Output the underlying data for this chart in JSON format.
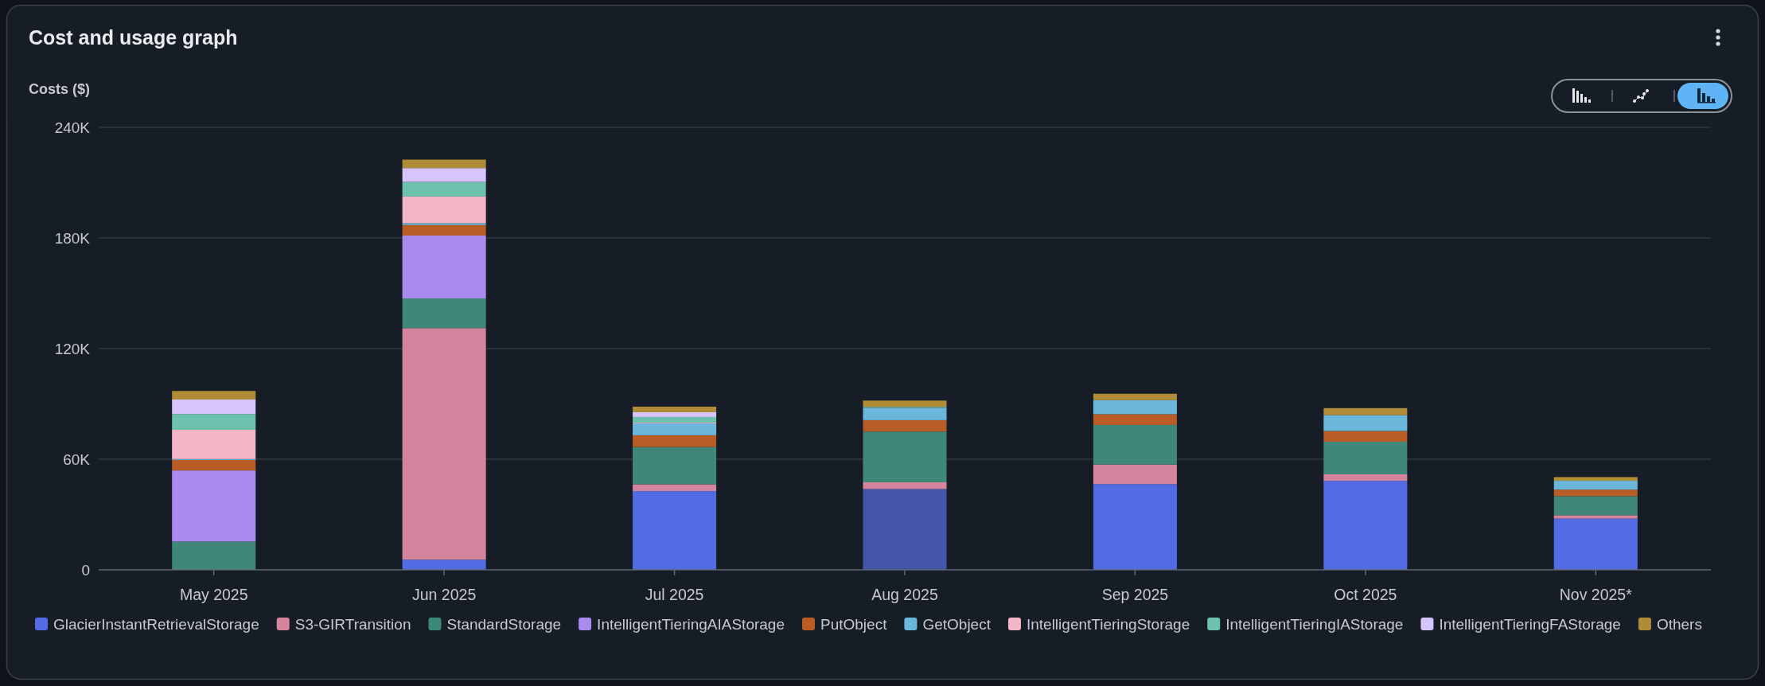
{
  "chart_data": {
    "type": "bar",
    "title": "Cost and usage graph",
    "ylabel": "Costs ($)",
    "categories": [
      "May 2025",
      "Jun 2025",
      "Jul 2025",
      "Aug 2025",
      "Sep 2025",
      "Oct 2025",
      "Nov 2025*"
    ],
    "stacked": true,
    "grid": "y",
    "legend": "bottom",
    "ylim": [
      0,
      240000
    ],
    "yticks": [
      0,
      {
        "value": 60000,
        "label": "60K"
      },
      {
        "value": 120000,
        "label": "120K"
      },
      {
        "value": 180000,
        "label": "180K"
      },
      {
        "value": 240000,
        "label": "240K"
      }
    ],
    "series": [
      {
        "name": "GlacierInstantRetrievalStorage",
        "color": "#536ce3",
        "colors": [
          null,
          "#536ce3",
          "#536ce3",
          "#4355a8",
          "#536ce3",
          "#536ce3",
          "#536ce3"
        ],
        "values": [
          null,
          5500,
          42700,
          43800,
          46500,
          48300,
          27800
        ]
      },
      {
        "name": "S3-GIRTransition",
        "color": "#d4849c",
        "values": [
          null,
          125600,
          3700,
          3700,
          10600,
          3500,
          1800
        ]
      },
      {
        "name": "StandardStorage",
        "color": "#3f8778",
        "values": [
          15300,
          16100,
          20200,
          27500,
          21500,
          17700,
          10400
        ]
      },
      {
        "name": "IntelligentTieringAIAStorage",
        "color": "#aa8bed",
        "values": [
          38600,
          34100,
          null,
          null,
          null,
          null,
          null
        ]
      },
      {
        "name": "PutObject",
        "color": "#b95c26",
        "values": [
          5700,
          5700,
          6400,
          6200,
          5800,
          5800,
          3500
        ]
      },
      {
        "name": "GetObject",
        "color": "#6bb7dc",
        "values": [
          500,
          1000,
          6400,
          6700,
          7600,
          8600,
          4800
        ]
      },
      {
        "name": "IntelligentTieringStorage",
        "color": "#f3b6c7",
        "values": [
          15900,
          14500,
          500,
          null,
          null,
          null,
          null
        ]
      },
      {
        "name": "IntelligentTieringIAStorage",
        "color": "#6cc2ad",
        "values": [
          8500,
          7900,
          3000,
          500,
          null,
          null,
          null
        ]
      },
      {
        "name": "IntelligentTieringFAStorage",
        "color": "#d6c4fa",
        "values": [
          7900,
          7500,
          2600,
          null,
          null,
          null,
          null
        ]
      },
      {
        "name": "Others",
        "color": "#b08c37",
        "values": [
          4600,
          4600,
          3000,
          3400,
          3500,
          3800,
          2000
        ]
      }
    ]
  }
}
